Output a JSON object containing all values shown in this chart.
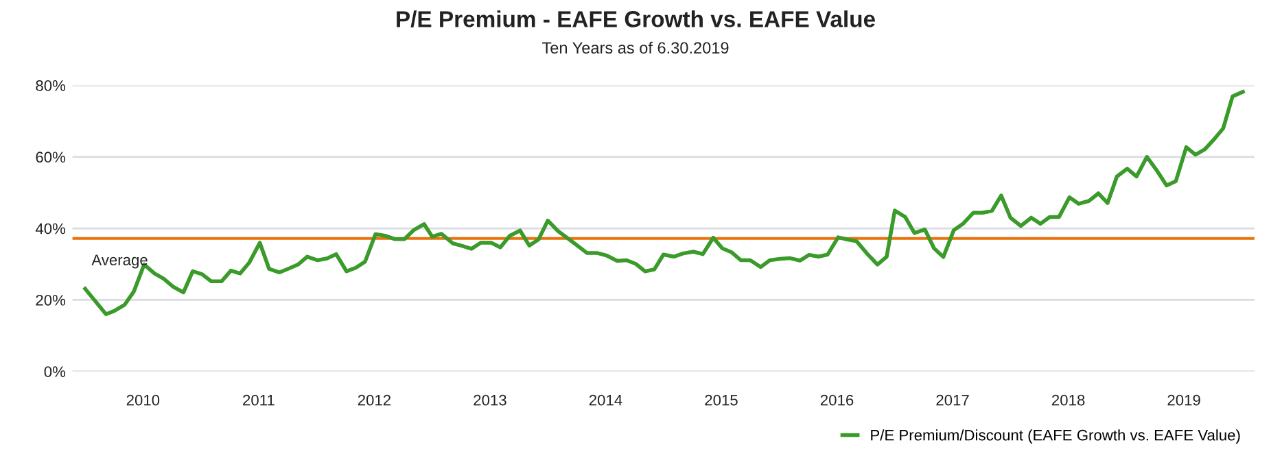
{
  "chart_data": {
    "type": "line",
    "title": "P/E Premium - EAFE Growth vs. EAFE Value",
    "subtitle": "Ten Years as of 6.30.2019",
    "x": [
      2009.5,
      2009.68,
      2009.75,
      2009.84,
      2009.92,
      2010.01,
      2010.1,
      2010.18,
      2010.26,
      2010.35,
      2010.43,
      2010.51,
      2010.59,
      2010.68,
      2010.76,
      2010.84,
      2010.92,
      2011.01,
      2011.09,
      2011.18,
      2011.27,
      2011.34,
      2011.42,
      2011.51,
      2011.59,
      2011.67,
      2011.76,
      2011.84,
      2011.92,
      2012.01,
      2012.1,
      2012.18,
      2012.26,
      2012.34,
      2012.43,
      2012.5,
      2012.58,
      2012.68,
      2012.76,
      2012.84,
      2012.92,
      2013.01,
      2013.09,
      2013.17,
      2013.26,
      2013.34,
      2013.42,
      2013.5,
      2013.59,
      2013.67,
      2013.76,
      2013.84,
      2013.93,
      2014.01,
      2014.1,
      2014.18,
      2014.26,
      2014.34,
      2014.42,
      2014.5,
      2014.59,
      2014.67,
      2014.76,
      2014.84,
      2014.93,
      2015.01,
      2015.09,
      2015.17,
      2015.25,
      2015.34,
      2015.42,
      2015.51,
      2015.59,
      2015.68,
      2015.76,
      2015.84,
      2015.92,
      2016.01,
      2016.09,
      2016.17,
      2016.27,
      2016.35,
      2016.43,
      2016.5,
      2016.59,
      2016.67,
      2016.76,
      2016.84,
      2016.92,
      2017.01,
      2017.09,
      2017.18,
      2017.26,
      2017.34,
      2017.42,
      2017.5,
      2017.59,
      2017.68,
      2017.76,
      2017.84,
      2017.92,
      2018.01,
      2018.09,
      2018.18,
      2018.26,
      2018.34,
      2018.42,
      2018.51,
      2018.59,
      2018.68,
      2018.77,
      2018.85,
      2018.93,
      2019.02,
      2019.1,
      2019.18,
      2019.26,
      2019.34,
      2019.42,
      2019.51
    ],
    "series": [
      {
        "name": "P/E Premium/Discount (EAFE Growth vs. EAFE Value)",
        "color": "#3a9a2a",
        "values": [
          23.1,
          16.0,
          16.9,
          18.6,
          22.3,
          29.9,
          27.4,
          25.9,
          23.7,
          22.1,
          28.0,
          27.2,
          25.2,
          25.2,
          28.2,
          27.4,
          30.5,
          36.0,
          28.7,
          27.7,
          28.9,
          29.9,
          32.1,
          31.1,
          31.6,
          32.8,
          28.0,
          29.0,
          30.7,
          38.4,
          37.9,
          37.0,
          37.0,
          39.5,
          41.2,
          37.7,
          38.5,
          35.8,
          35.1,
          34.3,
          36.0,
          36.0,
          34.7,
          37.9,
          39.4,
          35.2,
          36.9,
          42.2,
          39.2,
          37.3,
          35.1,
          33.1,
          33.1,
          32.4,
          30.9,
          31.1,
          30.1,
          28.0,
          28.5,
          32.7,
          32.1,
          33.0,
          33.5,
          32.8,
          37.4,
          34.4,
          33.3,
          31.1,
          31.1,
          29.2,
          31.1,
          31.5,
          31.7,
          31.0,
          32.6,
          32.1,
          32.7,
          37.5,
          36.9,
          36.4,
          32.6,
          29.9,
          32.1,
          45.0,
          43.2,
          38.7,
          39.7,
          34.4,
          32.0,
          39.5,
          41.3,
          44.4,
          44.4,
          44.9,
          49.2,
          43.0,
          40.7,
          43.0,
          41.3,
          43.2,
          43.2,
          48.7,
          46.9,
          47.7,
          49.8,
          47.1,
          54.5,
          56.7,
          54.5,
          60.0,
          56.0,
          52.0,
          53.2,
          62.7,
          60.6,
          62.1,
          64.9,
          68.0,
          76.9,
          78.2
        ]
      }
    ],
    "xlim": [
      2009.39,
      2019.61
    ],
    "xticks": [
      2010,
      2011,
      2012,
      2013,
      2014,
      2015,
      2016,
      2017,
      2018,
      2019
    ],
    "ylim": [
      0,
      80
    ],
    "yticks": [
      {
        "value": 0,
        "label": "0%"
      },
      {
        "value": 20,
        "label": "20%"
      },
      {
        "value": 40,
        "label": "40%"
      },
      {
        "value": 60,
        "label": "60%"
      },
      {
        "value": 80,
        "label": "80%"
      }
    ],
    "ref_lines": [
      {
        "axis": "y",
        "value": 37.2,
        "label": "Average",
        "color": "#e8720c"
      }
    ],
    "grid": "y",
    "legend": "bottom right",
    "marker": "none",
    "line_style": "solid"
  }
}
